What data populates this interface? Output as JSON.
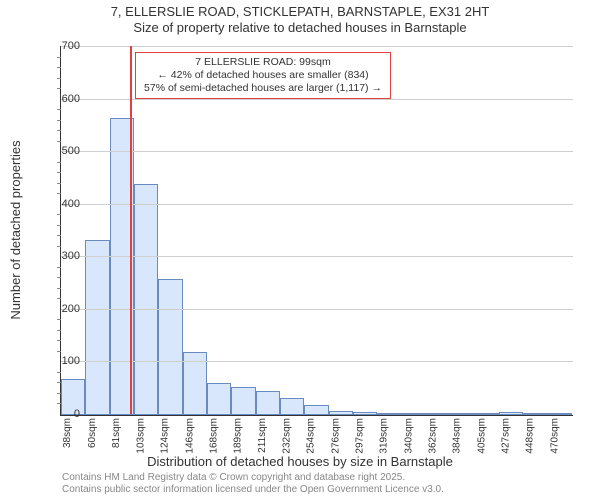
{
  "title_line1": "7, ELLERSLIE ROAD, STICKLEPATH, BARNSTAPLE, EX31 2HT",
  "title_line2": "Size of property relative to detached houses in Barnstaple",
  "ylabel": "Number of detached properties",
  "xlabel": "Distribution of detached houses by size in Barstaple",
  "xlabel_full": "Distribution of detached houses by size in Barnstaple",
  "footer_line1": "Contains HM Land Registry data © Crown copyright and database right 2025.",
  "footer_line2": "Contains public sector information licensed under the Open Government Licence v3.0.",
  "ref_box": {
    "line1": "7 ELLERSLIE ROAD: 99sqm",
    "line2": "← 42% of detached houses are smaller (834)",
    "line3": "57% of semi-detached houses are larger (1,117) →"
  },
  "chart": {
    "type": "histogram",
    "background_color": "#ffffff",
    "bar_fill": "#d8e7fb",
    "bar_border": "#6a8bbf",
    "grid_color": "#cfcfcf",
    "axis_color": "#333333",
    "ref_color": "#e04040",
    "ylim": [
      0,
      700
    ],
    "ytick_step": 100,
    "y_minor_step": 20,
    "ref_value": 99,
    "x_start": 38,
    "x_step": 21.5,
    "n_bars": 21,
    "bar_values": [
      68,
      333,
      565,
      440,
      258,
      120,
      61,
      54,
      46,
      32,
      19,
      7,
      5,
      4,
      3,
      2,
      2,
      2,
      6,
      2,
      3
    ],
    "x_labels": [
      "38sqm",
      "60sqm",
      "81sqm",
      "103sqm",
      "124sqm",
      "146sqm",
      "168sqm",
      "189sqm",
      "211sqm",
      "232sqm",
      "254sqm",
      "276sqm",
      "297sqm",
      "319sqm",
      "340sqm",
      "362sqm",
      "384sqm",
      "405sqm",
      "427sqm",
      "448sqm",
      "470sqm"
    ]
  }
}
